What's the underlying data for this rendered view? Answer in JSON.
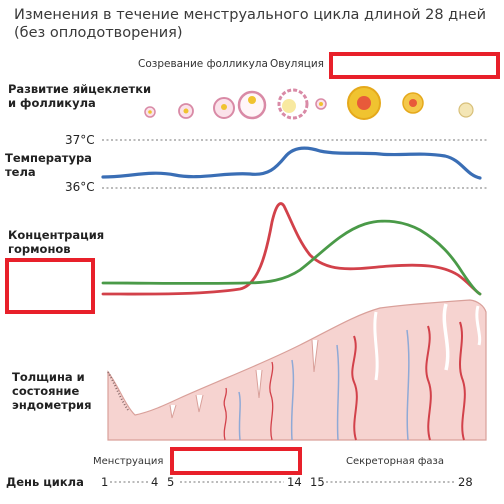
{
  "title": {
    "line1": "Изменения в течение менструального цикла длиной 28 дней",
    "line2": "(без оплодотворения)"
  },
  "top_phases": {
    "follicle_maturation": "Созревание фолликула",
    "ovulation": "Овуляция"
  },
  "row_labels": {
    "follicle": [
      "Развитие яйцеклетки",
      "и фолликула"
    ],
    "temperature": [
      "Температура",
      "тела"
    ],
    "hormones": [
      "Концентрация",
      "гормонов"
    ],
    "endometrium": [
      "Толщина и",
      "состояние",
      "эндометрия"
    ],
    "cycle_day": "День цикла"
  },
  "temperature_marks": {
    "high": "37°C",
    "low": "36°C"
  },
  "bottom_phases": {
    "menstruation": "Менструация",
    "secretory": "Секреторная фаза"
  },
  "day_ticks": [
    "1",
    "4",
    "5",
    "14",
    "15",
    "28"
  ],
  "colors": {
    "temperature_line": "#3a6eb5",
    "hormone_red": "#d2414a",
    "hormone_green": "#4a9a48",
    "endometrium_fill": "#f6d3d0",
    "follicle_pink": "#d98aa6",
    "follicle_yellow": "#f0c330",
    "redaction": "#e8202a"
  }
}
